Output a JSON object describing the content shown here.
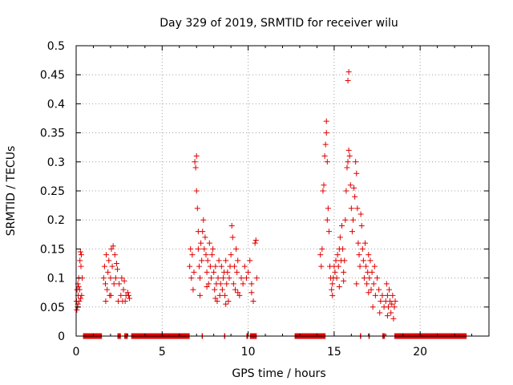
{
  "chart_data": {
    "type": "scatter",
    "title": "Day 329 of 2019, SRMTID for receiver wilu",
    "xlabel": "GPS time / hours",
    "ylabel": "SRMTID / TECUs",
    "xlim": [
      0,
      24
    ],
    "ylim": [
      0,
      0.5
    ],
    "xticks": [
      0,
      5,
      10,
      15,
      20
    ],
    "xtick_labels": [
      "0",
      "5",
      "10",
      "15",
      "20"
    ],
    "yticks": [
      0,
      0.05,
      0.1,
      0.15,
      0.2,
      0.25,
      0.3,
      0.35,
      0.4,
      0.45,
      0.5
    ],
    "ytick_labels": [
      "0",
      "0.05",
      "0.1",
      "0.15",
      "0.2",
      "0.25",
      "0.3",
      "0.35",
      "0.4",
      "0.45",
      "0.5"
    ],
    "grid": true,
    "marker": "plus",
    "series_color": "#e00000",
    "zero_segments": [
      [
        0.4,
        1.5
      ],
      [
        2.4,
        2.6
      ],
      [
        2.8,
        3.0
      ],
      [
        3.2,
        6.6
      ],
      [
        7.3,
        7.35
      ],
      [
        8.6,
        8.65
      ],
      [
        9.9,
        10.0
      ],
      [
        10.1,
        10.5
      ],
      [
        12.7,
        14.5
      ],
      [
        16.5,
        16.55
      ],
      [
        17.0,
        17.05
      ],
      [
        17.8,
        17.95
      ],
      [
        18.5,
        22.7
      ]
    ],
    "points": [
      [
        0.02,
        0.06
      ],
      [
        0.05,
        0.08
      ],
      [
        0.08,
        0.05
      ],
      [
        0.1,
        0.09
      ],
      [
        0.12,
        0.07
      ],
      [
        0.15,
        0.1
      ],
      [
        0.18,
        0.06
      ],
      [
        0.2,
        0.08
      ],
      [
        0.22,
        0.13
      ],
      [
        0.25,
        0.145
      ],
      [
        0.28,
        0.12
      ],
      [
        0.3,
        0.14
      ],
      [
        0.32,
        0.07
      ],
      [
        0.35,
        0.1
      ],
      [
        0.04,
        0.045
      ],
      [
        0.14,
        0.085
      ],
      [
        0.26,
        0.065
      ],
      [
        0.1,
        0.055
      ],
      [
        1.6,
        0.1
      ],
      [
        1.65,
        0.12
      ],
      [
        1.7,
        0.09
      ],
      [
        1.75,
        0.14
      ],
      [
        1.8,
        0.08
      ],
      [
        1.85,
        0.11
      ],
      [
        1.9,
        0.13
      ],
      [
        1.95,
        0.07
      ],
      [
        2.0,
        0.1
      ],
      [
        2.05,
        0.15
      ],
      [
        2.1,
        0.12
      ],
      [
        2.15,
        0.155
      ],
      [
        2.2,
        0.09
      ],
      [
        2.25,
        0.14
      ],
      [
        2.3,
        0.1
      ],
      [
        2.35,
        0.125
      ],
      [
        2.4,
        0.115
      ],
      [
        2.5,
        0.09
      ],
      [
        2.6,
        0.07
      ],
      [
        2.65,
        0.1
      ],
      [
        2.7,
        0.06
      ],
      [
        2.75,
        0.08
      ],
      [
        2.8,
        0.095
      ],
      [
        2.9,
        0.07
      ],
      [
        3.0,
        0.075
      ],
      [
        3.1,
        0.065
      ],
      [
        1.72,
        0.06
      ],
      [
        2.02,
        0.07
      ],
      [
        2.45,
        0.06
      ],
      [
        2.85,
        0.06
      ],
      [
        3.05,
        0.07
      ],
      [
        6.6,
        0.12
      ],
      [
        6.65,
        0.15
      ],
      [
        6.7,
        0.1
      ],
      [
        6.75,
        0.14
      ],
      [
        6.8,
        0.08
      ],
      [
        6.85,
        0.11
      ],
      [
        6.9,
        0.3
      ],
      [
        6.95,
        0.29
      ],
      [
        7.0,
        0.25
      ],
      [
        7.0,
        0.31
      ],
      [
        7.05,
        0.22
      ],
      [
        7.1,
        0.18
      ],
      [
        7.1,
        0.15
      ],
      [
        7.15,
        0.12
      ],
      [
        7.2,
        0.1
      ],
      [
        7.25,
        0.16
      ],
      [
        7.3,
        0.13
      ],
      [
        7.35,
        0.18
      ],
      [
        7.4,
        0.2
      ],
      [
        7.45,
        0.15
      ],
      [
        7.5,
        0.17
      ],
      [
        7.55,
        0.14
      ],
      [
        7.6,
        0.11
      ],
      [
        7.65,
        0.13
      ],
      [
        7.7,
        0.09
      ],
      [
        7.75,
        0.16
      ],
      [
        7.8,
        0.12
      ],
      [
        7.85,
        0.1
      ],
      [
        7.9,
        0.14
      ],
      [
        7.95,
        0.15
      ],
      [
        8.0,
        0.11
      ],
      [
        8.05,
        0.08
      ],
      [
        8.1,
        0.12
      ],
      [
        8.15,
        0.09
      ],
      [
        8.2,
        0.06
      ],
      [
        8.25,
        0.1
      ],
      [
        8.3,
        0.13
      ],
      [
        8.35,
        0.07
      ],
      [
        8.4,
        0.09
      ],
      [
        8.45,
        0.12
      ],
      [
        8.5,
        0.08
      ],
      [
        8.55,
        0.1
      ],
      [
        8.6,
        0.11
      ],
      [
        8.65,
        0.07
      ],
      [
        8.7,
        0.13
      ],
      [
        8.75,
        0.09
      ],
      [
        8.8,
        0.11
      ],
      [
        8.85,
        0.06
      ],
      [
        8.9,
        0.1
      ],
      [
        8.95,
        0.12
      ],
      [
        9.0,
        0.14
      ],
      [
        9.05,
        0.19
      ],
      [
        9.1,
        0.17
      ],
      [
        9.15,
        0.09
      ],
      [
        9.2,
        0.12
      ],
      [
        9.25,
        0.08
      ],
      [
        9.3,
        0.15
      ],
      [
        9.35,
        0.11
      ],
      [
        9.4,
        0.13
      ],
      [
        9.5,
        0.07
      ],
      [
        9.6,
        0.1
      ],
      [
        9.7,
        0.09
      ],
      [
        9.8,
        0.12
      ],
      [
        9.9,
        0.1
      ],
      [
        10.0,
        0.11
      ],
      [
        10.1,
        0.13
      ],
      [
        10.2,
        0.09
      ],
      [
        10.3,
        0.06
      ],
      [
        10.4,
        0.16
      ],
      [
        10.45,
        0.165
      ],
      [
        10.5,
        0.1
      ],
      [
        7.2,
        0.07
      ],
      [
        7.6,
        0.085
      ],
      [
        8.1,
        0.065
      ],
      [
        8.7,
        0.055
      ],
      [
        9.4,
        0.075
      ],
      [
        10.2,
        0.075
      ],
      [
        14.2,
        0.14
      ],
      [
        14.25,
        0.12
      ],
      [
        14.3,
        0.15
      ],
      [
        14.35,
        0.25
      ],
      [
        14.4,
        0.26
      ],
      [
        14.45,
        0.31
      ],
      [
        14.5,
        0.33
      ],
      [
        14.55,
        0.37
      ],
      [
        14.55,
        0.35
      ],
      [
        14.6,
        0.3
      ],
      [
        14.6,
        0.2
      ],
      [
        14.65,
        0.22
      ],
      [
        14.7,
        0.18
      ],
      [
        14.75,
        0.12
      ],
      [
        14.8,
        0.1
      ],
      [
        14.85,
        0.08
      ],
      [
        14.9,
        0.09
      ],
      [
        14.95,
        0.1
      ],
      [
        15.0,
        0.12
      ],
      [
        15.05,
        0.11
      ],
      [
        15.1,
        0.13
      ],
      [
        15.15,
        0.1
      ],
      [
        15.2,
        0.14
      ],
      [
        15.25,
        0.12
      ],
      [
        15.3,
        0.15
      ],
      [
        15.35,
        0.17
      ],
      [
        15.4,
        0.13
      ],
      [
        15.45,
        0.19
      ],
      [
        15.5,
        0.15
      ],
      [
        15.55,
        0.11
      ],
      [
        15.6,
        0.13
      ],
      [
        15.65,
        0.2
      ],
      [
        15.7,
        0.25
      ],
      [
        15.75,
        0.29
      ],
      [
        15.8,
        0.3
      ],
      [
        15.8,
        0.44
      ],
      [
        15.85,
        0.455
      ],
      [
        15.85,
        0.32
      ],
      [
        15.9,
        0.31
      ],
      [
        15.95,
        0.26
      ],
      [
        16.0,
        0.22
      ],
      [
        16.05,
        0.18
      ],
      [
        16.1,
        0.2
      ],
      [
        16.15,
        0.255
      ],
      [
        16.2,
        0.24
      ],
      [
        16.25,
        0.3
      ],
      [
        16.3,
        0.28
      ],
      [
        16.35,
        0.22
      ],
      [
        16.4,
        0.16
      ],
      [
        16.45,
        0.14
      ],
      [
        16.5,
        0.12
      ],
      [
        16.55,
        0.21
      ],
      [
        16.6,
        0.19
      ],
      [
        16.65,
        0.15
      ],
      [
        16.7,
        0.13
      ],
      [
        16.75,
        0.1
      ],
      [
        16.8,
        0.16
      ],
      [
        16.85,
        0.12
      ],
      [
        16.9,
        0.09
      ],
      [
        16.95,
        0.11
      ],
      [
        17.0,
        0.14
      ],
      [
        17.05,
        0.1
      ],
      [
        17.1,
        0.13
      ],
      [
        17.15,
        0.08
      ],
      [
        17.2,
        0.11
      ],
      [
        17.25,
        0.05
      ],
      [
        17.3,
        0.09
      ],
      [
        17.35,
        0.12
      ],
      [
        17.4,
        0.07
      ],
      [
        17.5,
        0.1
      ],
      [
        17.6,
        0.08
      ],
      [
        17.7,
        0.06
      ],
      [
        17.8,
        0.07
      ],
      [
        17.9,
        0.05
      ],
      [
        18.0,
        0.06
      ],
      [
        18.05,
        0.09
      ],
      [
        18.1,
        0.07
      ],
      [
        18.15,
        0.05
      ],
      [
        18.2,
        0.08
      ],
      [
        18.25,
        0.06
      ],
      [
        18.3,
        0.04
      ],
      [
        18.35,
        0.055
      ],
      [
        18.4,
        0.07
      ],
      [
        18.45,
        0.03
      ],
      [
        18.5,
        0.05
      ],
      [
        18.55,
        0.06
      ],
      [
        14.9,
        0.07
      ],
      [
        15.3,
        0.085
      ],
      [
        15.55,
        0.095
      ],
      [
        16.3,
        0.09
      ],
      [
        17.0,
        0.075
      ],
      [
        17.65,
        0.04
      ],
      [
        18.1,
        0.035
      ]
    ]
  }
}
